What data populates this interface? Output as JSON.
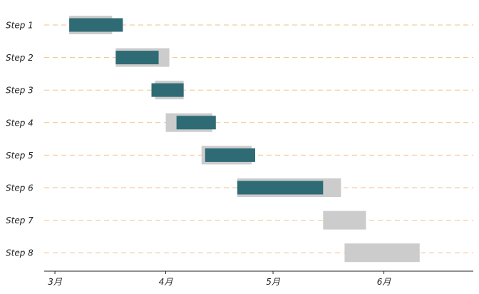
{
  "colors": {
    "planned": "#cccccc",
    "actual": "#2e6b75",
    "gridline": "#f2c089",
    "axis": "#222222"
  },
  "chart_data": {
    "type": "gantt",
    "title": "",
    "xlabel": "",
    "ylabel": "",
    "x_axis": {
      "min": "2021-02-26",
      "max": "2021-06-26",
      "ticks": [
        {
          "date": "2021-03-01",
          "label": "3月"
        },
        {
          "date": "2021-04-01",
          "label": "4月"
        },
        {
          "date": "2021-05-01",
          "label": "5月"
        },
        {
          "date": "2021-06-01",
          "label": "6月"
        }
      ]
    },
    "grid": {
      "horizontal": true,
      "style": "dashed"
    },
    "series": [
      {
        "values": [
          {
            "start": "2021-03-05",
            "end": "2021-03-17"
          },
          {
            "start": "2021-03-18",
            "end": "2021-04-02"
          },
          {
            "start": "2021-03-29",
            "end": "2021-04-06"
          },
          {
            "start": "2021-04-01",
            "end": "2021-04-14"
          },
          {
            "start": "2021-04-11",
            "end": "2021-04-25"
          },
          {
            "start": "2021-04-21",
            "end": "2021-05-20"
          },
          {
            "start": "2021-05-15",
            "end": "2021-05-27"
          },
          {
            "start": "2021-05-21",
            "end": "2021-06-11"
          }
        ]
      },
      {
        "values": [
          {
            "start": "2021-03-05",
            "end": "2021-03-20"
          },
          {
            "start": "2021-03-18",
            "end": "2021-03-30"
          },
          {
            "start": "2021-03-28",
            "end": "2021-04-06"
          },
          {
            "start": "2021-04-04",
            "end": "2021-04-15"
          },
          {
            "start": "2021-04-12",
            "end": "2021-04-26"
          },
          {
            "start": "2021-04-21",
            "end": "2021-05-15"
          },
          null,
          null
        ]
      }
    ],
    "categories": [
      "Step 1",
      "Step 2",
      "Step 3",
      "Step 4",
      "Step 5",
      "Step 6",
      "Step 7",
      "Step 8"
    ]
  }
}
